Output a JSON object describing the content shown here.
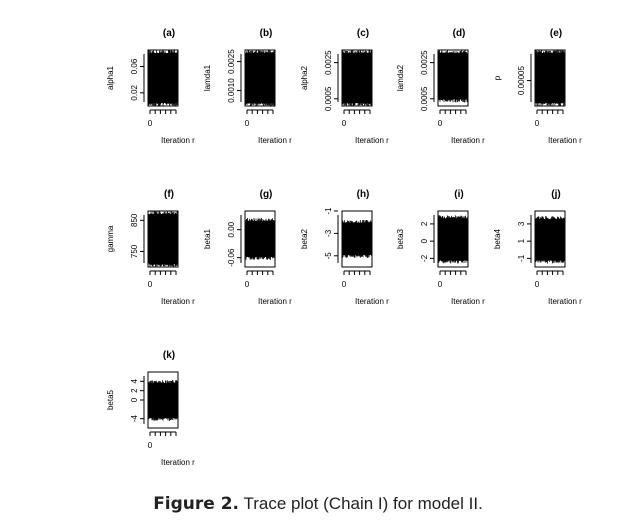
{
  "chart_data": [
    {
      "type": "line",
      "label": "(a)",
      "ylabel": "alpha1",
      "xlabel": "Iteration r",
      "x_ticks": [
        "0"
      ],
      "y_ticks": [
        "0.02",
        "0.06"
      ],
      "ylim": [
        0.0,
        0.085
      ],
      "band": [
        0.0,
        0.085
      ]
    },
    {
      "type": "line",
      "label": "(b)",
      "ylabel": "lamda1",
      "xlabel": "Iteration r",
      "x_ticks": [
        "0"
      ],
      "y_ticks": [
        "0.0010",
        "0.0025"
      ],
      "ylim": [
        0.0002,
        0.0031
      ],
      "band": [
        0.0002,
        0.0031
      ]
    },
    {
      "type": "line",
      "label": "(c)",
      "ylabel": "alpha2",
      "xlabel": "Iteration r",
      "x_ticks": [
        "0"
      ],
      "y_ticks": [
        "0.0005",
        "0.0025"
      ],
      "ylim": [
        0.0001,
        0.0032
      ],
      "band": [
        0.0001,
        0.0032
      ]
    },
    {
      "type": "line",
      "label": "(d)",
      "ylabel": "lamda2",
      "xlabel": "Iteration r",
      "x_ticks": [
        "0"
      ],
      "y_ticks": [
        "0.0005",
        "0.0025"
      ],
      "ylim": [
        0.0001,
        0.0032
      ],
      "band": [
        0.0003,
        0.0032
      ]
    },
    {
      "type": "line",
      "label": "(e)",
      "ylabel": "p",
      "xlabel": "Iteration r",
      "x_ticks": [
        "0"
      ],
      "y_ticks": [
        "0.00005"
      ],
      "ylim": [
        0.0,
        0.00011
      ],
      "band": [
        0.0,
        0.00011
      ]
    },
    {
      "type": "line",
      "label": "(f)",
      "ylabel": "gamma",
      "xlabel": "Iteration r",
      "x_ticks": [
        "0"
      ],
      "y_ticks": [
        "750",
        "850"
      ],
      "ylim": [
        700,
        880
      ],
      "band": [
        700,
        880
      ]
    },
    {
      "type": "line",
      "label": "(g)",
      "ylabel": "beta1",
      "xlabel": "Iteration r",
      "x_ticks": [
        "0"
      ],
      "y_ticks": [
        "-0.06",
        "0.00"
      ],
      "ylim": [
        -0.08,
        0.04
      ],
      "band": [
        -0.065,
        0.025
      ]
    },
    {
      "type": "line",
      "label": "(h)",
      "ylabel": "beta2",
      "xlabel": "Iteration r",
      "x_ticks": [
        "0"
      ],
      "y_ticks": [
        "-5",
        "-3",
        "-1"
      ],
      "ylim": [
        -6,
        -1
      ],
      "band": [
        -5.2,
        -1.8
      ]
    },
    {
      "type": "line",
      "label": "(i)",
      "ylabel": "beta3",
      "xlabel": "Iteration r",
      "x_ticks": [
        "0"
      ],
      "y_ticks": [
        "-2",
        "0",
        "2"
      ],
      "ylim": [
        -3,
        3.5
      ],
      "band": [
        -2.6,
        3.0
      ]
    },
    {
      "type": "line",
      "label": "(j)",
      "ylabel": "beta4",
      "xlabel": "Iteration r",
      "x_ticks": [
        "0"
      ],
      "y_ticks": [
        "-1",
        "1",
        "3"
      ],
      "ylim": [
        -2,
        4.5
      ],
      "band": [
        -1.6,
        3.9
      ]
    },
    {
      "type": "line",
      "label": "(k)",
      "ylabel": "beta5",
      "xlabel": "Iteration r",
      "x_ticks": [
        "0"
      ],
      "y_ticks": [
        "-4",
        "0",
        "2",
        "4"
      ],
      "ylim": [
        -6,
        6
      ],
      "band": [
        -4.5,
        4.3
      ]
    }
  ],
  "caption": {
    "prefix": "Figure 2.",
    "text": " Trace plot (Chain I) for model II."
  }
}
